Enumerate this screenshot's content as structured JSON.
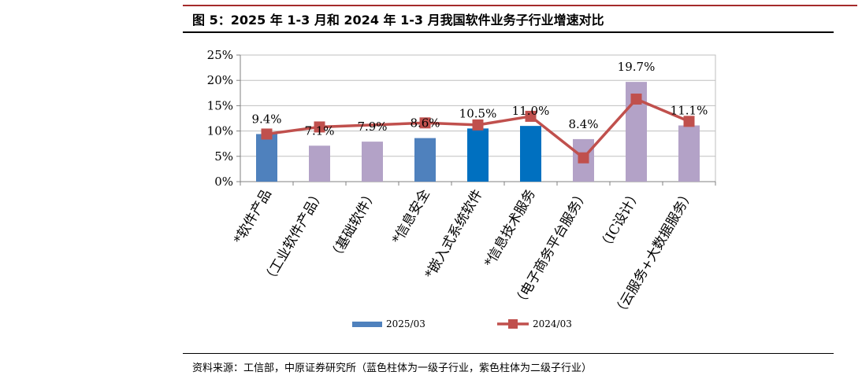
{
  "header": {
    "title": "图 5：2025 年 1-3 月和 2024 年 1-3 月我国软件业务子行业增速对比"
  },
  "footer": {
    "source": "资料来源：工信部，中原证券研究所（蓝色柱体为一级子行业，紫色柱体为二级子行业）"
  },
  "colors": {
    "level1_bar": "#4f81bd",
    "level1_bar_highlight": "#0070c0",
    "level2_bar": "#b3a2c7",
    "line": "#c0504d"
  },
  "chart_data": {
    "type": "bar",
    "categories": [
      "*软件产品",
      "（工业软件产品）",
      "（基础软件）",
      "*信息安全",
      "*嵌入式系统软件",
      "*信息技术服务",
      "（电子商务平台服务）",
      "（IC设计）",
      "（云服务+大数据服务）"
    ],
    "series": [
      {
        "name": "2025/03",
        "type": "bar",
        "values": [
          9.4,
          7.1,
          7.9,
          8.6,
          10.5,
          11.0,
          8.4,
          19.7,
          11.1
        ],
        "value_labels": [
          "9.4%",
          "7.1%",
          "7.9%",
          "8.6%",
          "10.5%",
          "11.0%",
          "8.4%",
          "19.7%",
          "11.1%"
        ],
        "bar_color_keys": [
          "level1_bar",
          "level2_bar",
          "level2_bar",
          "level1_bar",
          "level1_bar_highlight",
          "level1_bar_highlight",
          "level2_bar",
          "level2_bar",
          "level2_bar"
        ]
      },
      {
        "name": "2024/03",
        "type": "line",
        "values": [
          9.4,
          10.8,
          null,
          11.6,
          11.2,
          12.9,
          4.7,
          16.3,
          11.9
        ]
      }
    ],
    "yticks": [
      "0%",
      "5%",
      "10%",
      "15%",
      "20%",
      "25%"
    ],
    "ylim": [
      0,
      25
    ],
    "xlabel": "",
    "ylabel": "",
    "grid": true,
    "legend": "bottom"
  }
}
